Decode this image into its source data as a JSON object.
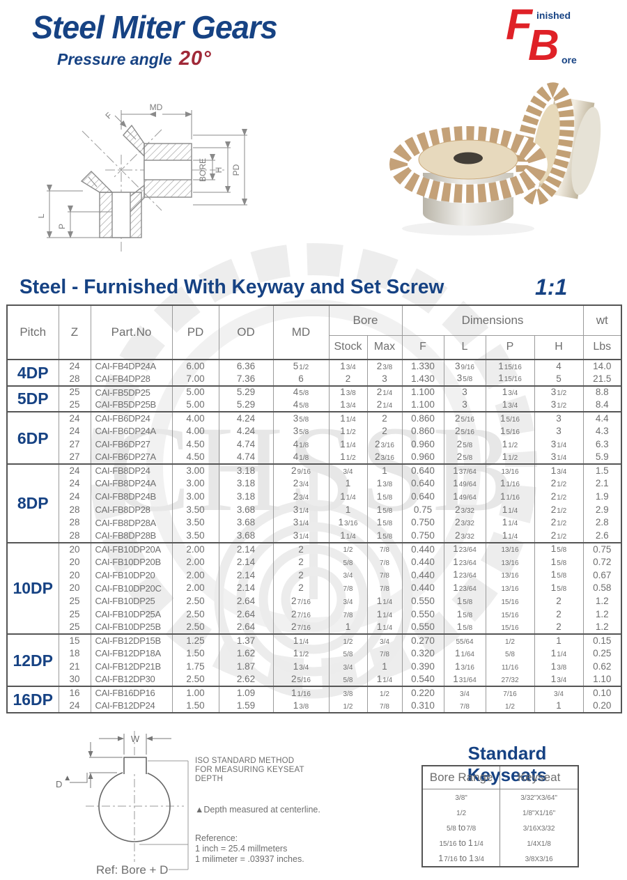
{
  "page": {
    "title": "Steel Miter Gears",
    "subtitle_prefix": "Pressure angle",
    "subtitle_angle": "20°",
    "logo": {
      "f": "F",
      "finished": "inished",
      "b": "B",
      "ore": "ore"
    },
    "section_title": "Steel - Furnished With Keyway and Set Screw",
    "scale_note": "1:1"
  },
  "watermark": "CHSSB",
  "diagram_labels": {
    "md": "MD",
    "f": "F",
    "bore": "BORE",
    "h": "H",
    "pd": "PD",
    "l": "L",
    "p": "P"
  },
  "main_table": {
    "headers": {
      "pitch": "Pitch",
      "z": "Z",
      "part": "Part.No",
      "pd": "PD",
      "od": "OD",
      "md": "MD",
      "bore": "Bore",
      "dims": "Dimensions",
      "wt": "wt",
      "stock": "Stock",
      "max": "Max",
      "f": "F",
      "l": "L",
      "p": "P",
      "h": "H",
      "lbs": "Lbs"
    },
    "groups": [
      {
        "pitch": "4DP",
        "rows": [
          [
            "24",
            "CAI-FB4DP24A",
            "6.00",
            "6.36",
            "5 1/2",
            "1 3/4",
            "2 3/8",
            "1.330",
            "3 9/16",
            "1 15/16",
            "4",
            "14.0"
          ],
          [
            "28",
            "CAI-FB4DP28",
            "7.00",
            "7.36",
            "6",
            "2",
            "3",
            "1.430",
            "3 5/8",
            "1 15/16",
            "5",
            "21.5"
          ]
        ]
      },
      {
        "pitch": "5DP",
        "rows": [
          [
            "25",
            "CAI-FB5DP25",
            "5.00",
            "5.29",
            "4 5/8",
            "1 3/8",
            "2 1/4",
            "1.100",
            "3",
            "1 3/4",
            "3 1/2",
            "8.8"
          ],
          [
            "25",
            "CAI-FB5DP25B",
            "5.00",
            "5.29",
            "4 5/8",
            "1 3/4",
            "2 1/4",
            "1.100",
            "3",
            "1 3/4",
            "3 1/2",
            "8.4"
          ]
        ]
      },
      {
        "pitch": "6DP",
        "rows": [
          [
            "24",
            "CAI-FB6DP24",
            "4.00",
            "4.24",
            "3 5/8",
            "1 1/4",
            "2",
            "0.860",
            "2 5/16",
            "1 5/16",
            "3",
            "4.4"
          ],
          [
            "24",
            "CAI-FB6DP24A",
            "4.00",
            "4.24",
            "3 5/8",
            "1 1/2",
            "2",
            "0.860",
            "2 5/16",
            "1 5/16",
            "3",
            "4.3"
          ],
          [
            "27",
            "CAI-FB6DP27",
            "4.50",
            "4.74",
            "4 1/8",
            "1 1/4",
            "2 3/16",
            "0.960",
            "2 5/8",
            "1 1/2",
            "3 1/4",
            "6.3"
          ],
          [
            "27",
            "CAI-FB6DP27A",
            "4.50",
            "4.74",
            "4 1/8",
            "1 1/2",
            "2 3/16",
            "0.960",
            "2 5/8",
            "1 1/2",
            "3 1/4",
            "5.9"
          ]
        ]
      },
      {
        "pitch": "8DP",
        "rows": [
          [
            "24",
            "CAI-FB8DP24",
            "3.00",
            "3.18",
            "2 9/16",
            "3/4",
            "1",
            "0.640",
            "1 37/64",
            "13/16",
            "1 3/4",
            "1.5"
          ],
          [
            "24",
            "CAI-FB8DP24A",
            "3.00",
            "3.18",
            "2 3/4",
            "1",
            "1 3/8",
            "0.640",
            "1 49/64",
            "1 1/16",
            "2 1/2",
            "2.1"
          ],
          [
            "24",
            "CAI-FB8DP24B",
            "3.00",
            "3.18",
            "2 3/4",
            "1 1/4",
            "1 5/8",
            "0.640",
            "1 49/64",
            "1 1/16",
            "2 1/2",
            "1.9"
          ],
          [
            "28",
            "CAI-FB8DP28",
            "3.50",
            "3.68",
            "3 1/4",
            "1",
            "1 5/8",
            "0.75",
            "2 3/32",
            "1 1/4",
            "2 1/2",
            "2.9"
          ],
          [
            "28",
            "CAI-FB8DP28A",
            "3.50",
            "3.68",
            "3 1/4",
            "1 3/16",
            "1 5/8",
            "0.750",
            "2 3/32",
            "1 1/4",
            "2 1/2",
            "2.8"
          ],
          [
            "28",
            "CAI-FB8DP28B",
            "3.50",
            "3.68",
            "3 1/4",
            "1 1/4",
            "1 5/8",
            "0.750",
            "2 3/32",
            "1 1/4",
            "2 1/2",
            "2.6"
          ]
        ]
      },
      {
        "pitch": "10DP",
        "rows": [
          [
            "20",
            "CAI-FB10DP20A",
            "2.00",
            "2.14",
            "2",
            "1/2",
            "7/8",
            "0.440",
            "1 23/64",
            "13/16",
            "1 5/8",
            "0.75"
          ],
          [
            "20",
            "CAI-FB10DP20B",
            "2.00",
            "2.14",
            "2",
            "5/8",
            "7/8",
            "0.440",
            "1 23/64",
            "13/16",
            "1 5/8",
            "0.72"
          ],
          [
            "20",
            "CAI-FB10DP20",
            "2.00",
            "2.14",
            "2",
            "3/4",
            "7/8",
            "0.440",
            "1 23/64",
            "13/16",
            "1 5/8",
            "0.67"
          ],
          [
            "20",
            "CAI-FB10DP20C",
            "2.00",
            "2.14",
            "2",
            "7/8",
            "7/8",
            "0.440",
            "1 23/64",
            "13/16",
            "1 5/8",
            "0.58"
          ],
          [
            "25",
            "CAI-FB10DP25",
            "2.50",
            "2.64",
            "2 7/16",
            "3/4",
            "1 1/4",
            "0.550",
            "1 5/8",
            "15/16",
            "2",
            "1.2"
          ],
          [
            "25",
            "CAI-FB10DP25A",
            "2.50",
            "2.64",
            "2 7/16",
            "7/8",
            "1 1/4",
            "0.550",
            "1 5/8",
            "15/16",
            "2",
            "1.2"
          ],
          [
            "25",
            "CAI-FB10DP25B",
            "2.50",
            "2.64",
            "2 7/16",
            "1",
            "1 1/4",
            "0.550",
            "1 5/8",
            "15/16",
            "2",
            "1.2"
          ]
        ]
      },
      {
        "pitch": "12DP",
        "rows": [
          [
            "15",
            "CAI-FB12DP15B",
            "1.25",
            "1.37",
            "1 1/4",
            "1/2",
            "3/4",
            "0.270",
            "55/64",
            "1/2",
            "1",
            "0.15"
          ],
          [
            "18",
            "CAI-FB12DP18A",
            "1.50",
            "1.62",
            "1 1/2",
            "5/8",
            "7/8",
            "0.320",
            "1 1/64",
            "5/8",
            "1 1/4",
            "0.25"
          ],
          [
            "21",
            "CAI-FB12DP21B",
            "1.75",
            "1.87",
            "1 3/4",
            "3/4",
            "1",
            "0.390",
            "1 3/16",
            "11/16",
            "1 3/8",
            "0.62"
          ],
          [
            "30",
            "CAI-FB12DP30",
            "2.50",
            "2.62",
            "2 5/16",
            "5/8",
            "1 1/4",
            "0.540",
            "1 31/64",
            "27/32",
            "1 3/4",
            "1.10"
          ]
        ]
      },
      {
        "pitch": "16DP",
        "rows": [
          [
            "16",
            "CAI-FB16DP16",
            "1.00",
            "1.09",
            "1 1/16",
            "3/8",
            "1/2",
            "0.220",
            "3/4",
            "7/16",
            "3/4",
            "0.10"
          ],
          [
            "24",
            "CAI-FB12DP24",
            "1.50",
            "1.59",
            "1 3/8",
            "1/2",
            "7/8",
            "0.310",
            "7/8",
            "1/2",
            "1",
            "0.20"
          ]
        ]
      }
    ]
  },
  "keyseat_diagram": {
    "w_label": "W",
    "d_label": "D",
    "triangle": "▲",
    "iso": [
      "ISO STANDARD METHOD",
      "FOR MEASURING KEYSEAT",
      "DEPTH"
    ],
    "depth_note": "▲Depth measured at centerline.",
    "reference": [
      "Reference:",
      "1 inch = 25.4 millmeters",
      "1 milimeter = .03937 inches."
    ],
    "ref_bore": "Ref: Bore + D"
  },
  "keyseats": {
    "title": "Standard Keyseats",
    "headers": [
      "Bore Range",
      "Keyseat"
    ],
    "rows": [
      [
        "3/8\"",
        "3/32\"X3/64\""
      ],
      [
        "1/2",
        "1/8\"X1/16\""
      ],
      [
        "5/8 to 7/8",
        "3/16X3/32"
      ],
      [
        "15/16 to 1 1/4",
        "1/4X1/8"
      ],
      [
        "1 7/16 to 1 3/4",
        "3/8X3/16"
      ]
    ]
  }
}
